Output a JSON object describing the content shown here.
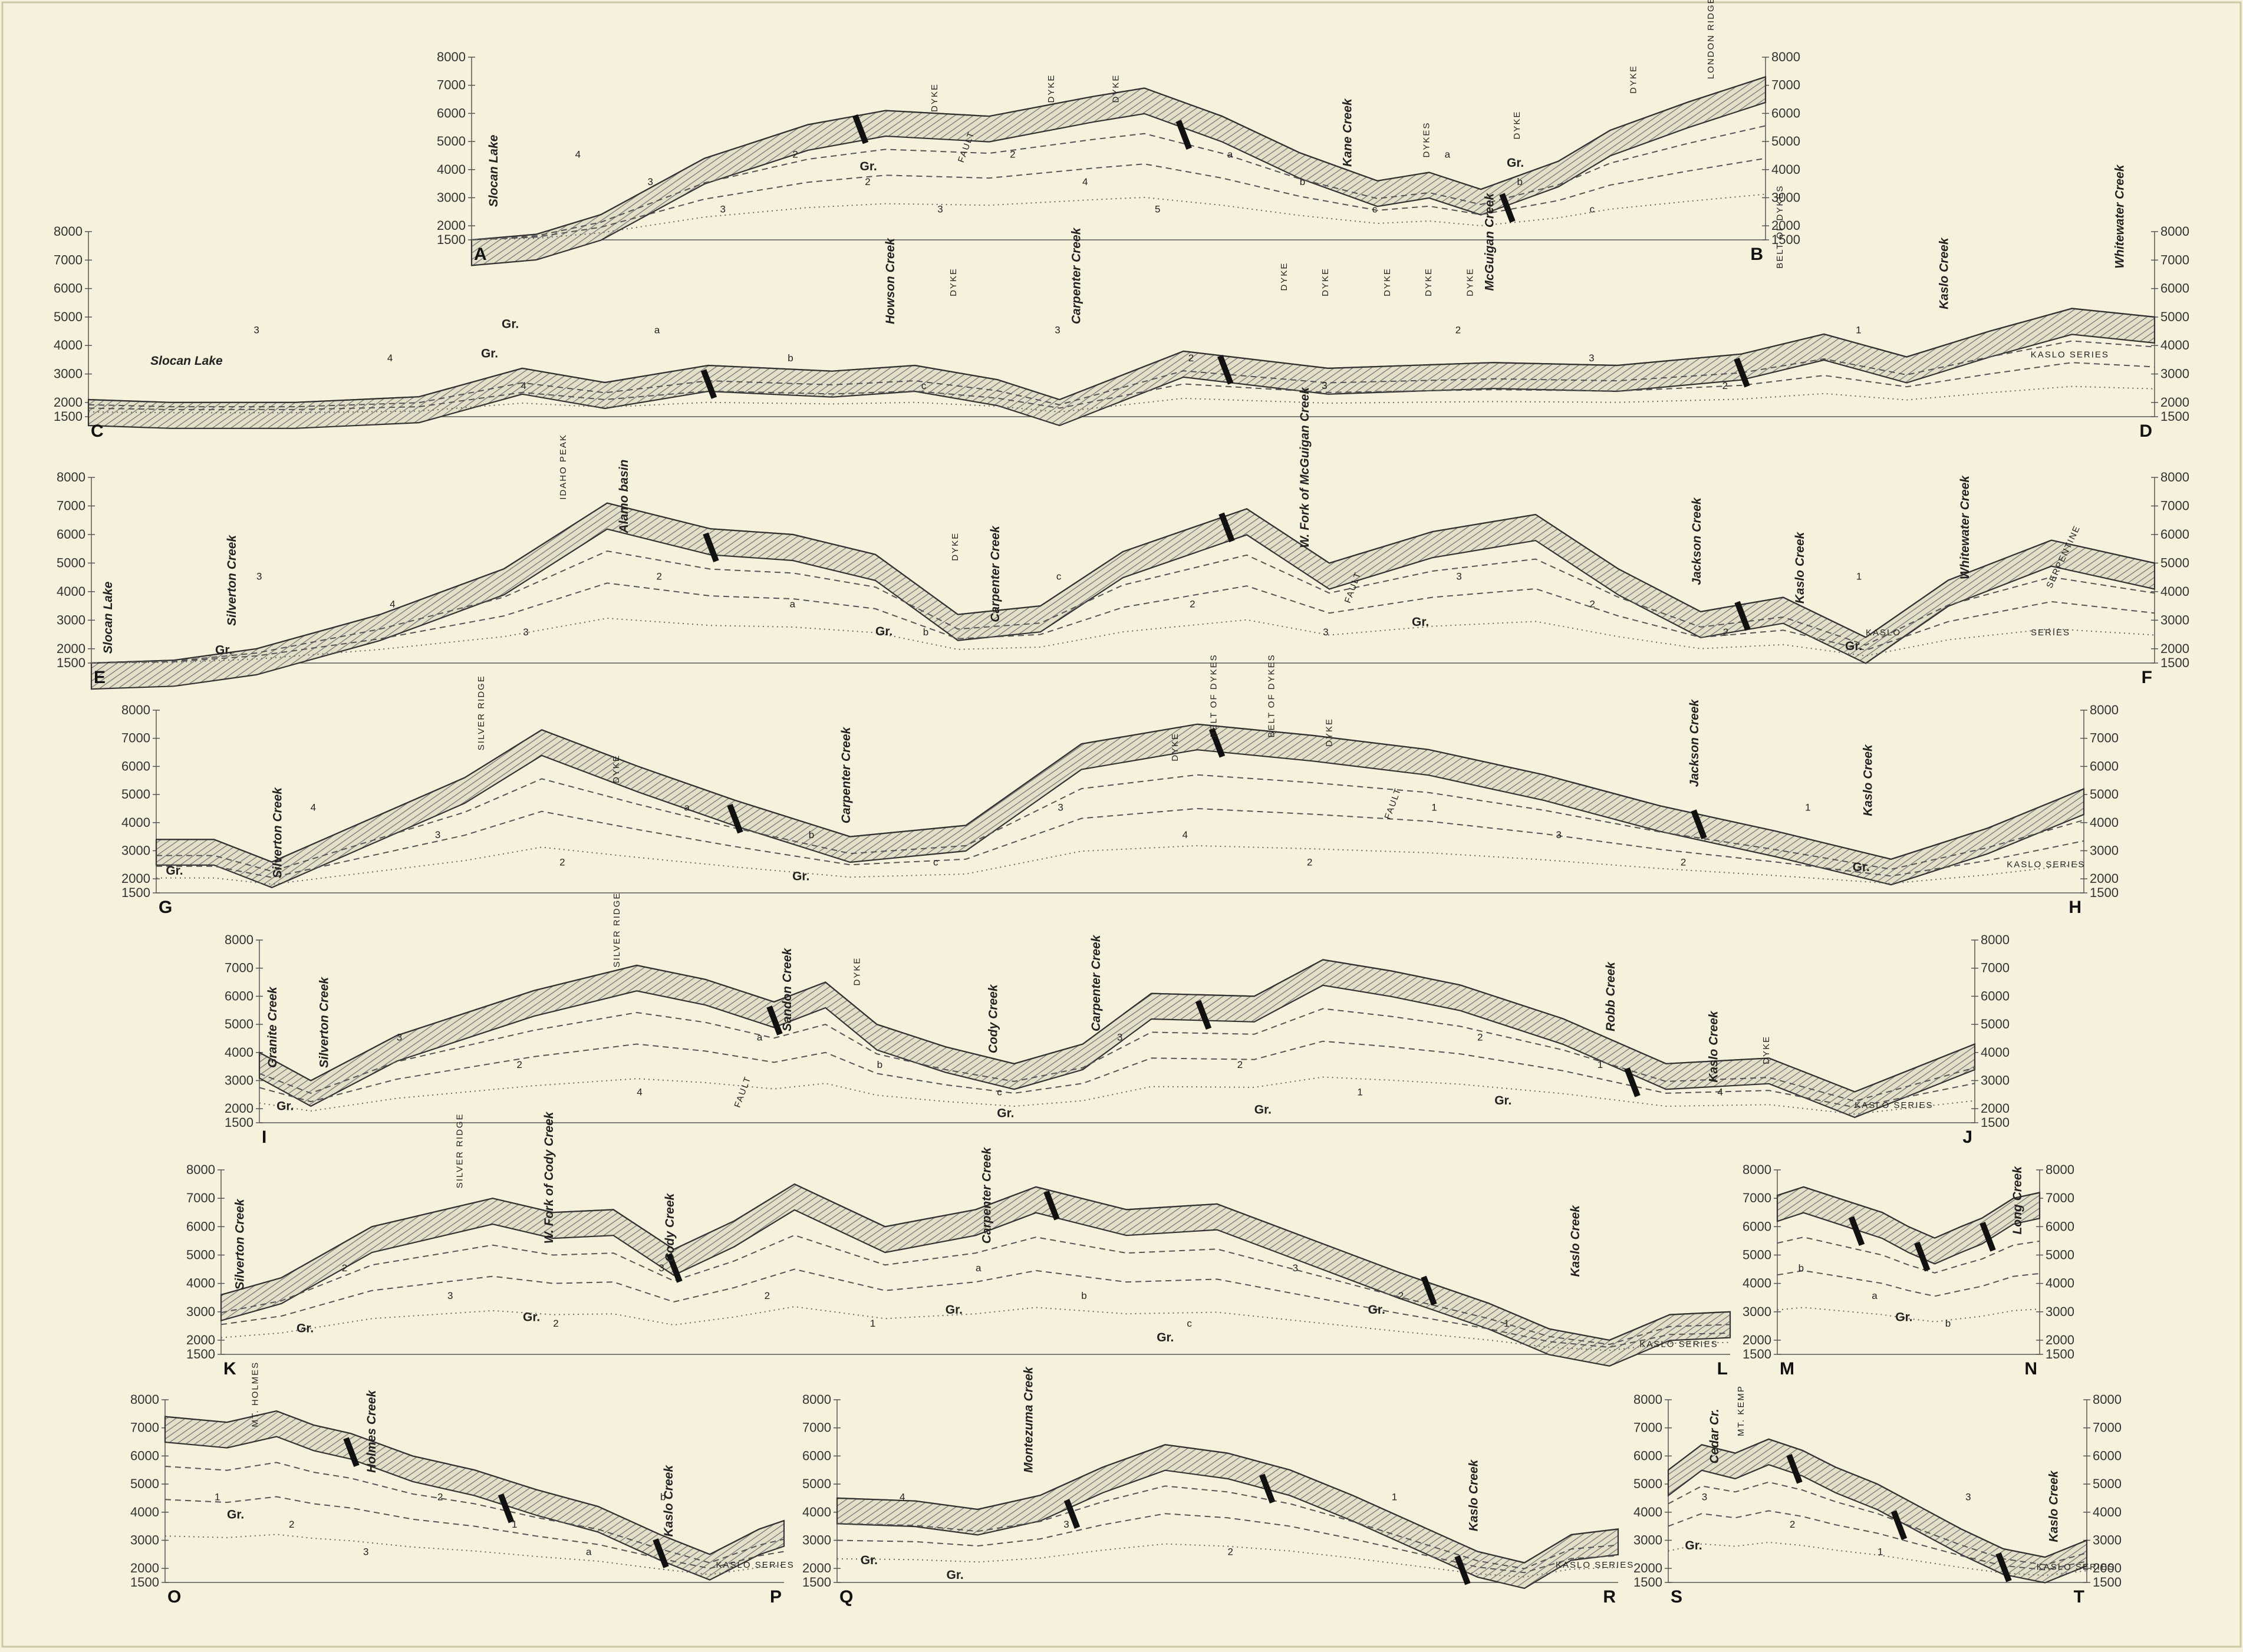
{
  "sections": [
    {
      "id": "AB",
      "start": "A",
      "end": "B",
      "ticks": [
        "8000",
        "7000",
        "6000",
        "5000",
        "4000",
        "3000",
        "2000",
        "1500"
      ],
      "right_axis": true,
      "labels": [
        "Slocan Lake",
        "Gr.",
        "DYKE",
        "DYKE",
        "DYKE",
        "FAULT",
        "Kane Creek",
        "DYKES",
        "DYKE",
        "DYKE",
        "LONDON RIDGE",
        "Gr."
      ],
      "numbers": [
        "4",
        "3",
        "3",
        "2",
        "2",
        "3",
        "2",
        "4",
        "5",
        "a",
        "b",
        "c",
        "a",
        "b",
        "c"
      ]
    },
    {
      "id": "CD",
      "start": "C",
      "end": "D",
      "ticks": [
        "8000",
        "7000",
        "6000",
        "5000",
        "4000",
        "3000",
        "2000",
        "1500"
      ],
      "right_axis": true,
      "labels": [
        "Slocan Lake",
        "Gr.",
        "Gr.",
        "Howson Creek",
        "DYKE",
        "Carpenter Creek",
        "DYKE",
        "DYKE",
        "DYKE",
        "DYKE",
        "DYKE",
        "McGuigan Creek",
        "BELT OF DYKES",
        "Kaslo Creek",
        "Whitewater Creek",
        "KASLO SERIES"
      ],
      "numbers": [
        "3",
        "4",
        "4",
        "a",
        "b",
        "c",
        "3",
        "2",
        "3",
        "2",
        "3",
        "2",
        "1"
      ]
    },
    {
      "id": "EF",
      "start": "E",
      "end": "F",
      "ticks": [
        "8000",
        "7000",
        "6000",
        "5000",
        "4000",
        "3000",
        "2000",
        "1500"
      ],
      "right_axis": true,
      "labels": [
        "Slocan Lake",
        "Silverton Creek",
        "Gr.",
        "IDAHO PEAK",
        "Alamo basin",
        "DYKE",
        "Carpenter Creek",
        "Gr.",
        "W. Fork of McGuigan Creek",
        "FAULT",
        "Gr.",
        "Jackson Creek",
        "Kaslo Creek",
        "Whitewater Creek",
        "KASLO",
        "SERPENTINE",
        "SERIES",
        "Gr."
      ],
      "numbers": [
        "3",
        "4",
        "3",
        "2",
        "a",
        "b",
        "c",
        "2",
        "3",
        "3",
        "2",
        "2",
        "1"
      ]
    },
    {
      "id": "GH",
      "start": "G",
      "end": "H",
      "ticks": [
        "8000",
        "7000",
        "6000",
        "5000",
        "4000",
        "3000",
        "2000",
        "1500"
      ],
      "right_axis": true,
      "labels": [
        "Gr.",
        "Silverton Creek",
        "SILVER RIDGE",
        "DYKE",
        "Carpenter Creek",
        "Gr.",
        "DYKE",
        "BELT OF DYKES",
        "BELT OF DYKES",
        "DYKE",
        "FAULT",
        "Jackson Creek",
        "Kaslo Creek",
        "Gr.",
        "KASLO SERIES"
      ],
      "numbers": [
        "4",
        "3",
        "2",
        "a",
        "b",
        "c",
        "3",
        "4",
        "2",
        "1",
        "3",
        "2",
        "1"
      ]
    },
    {
      "id": "IJ",
      "start": "I",
      "end": "J",
      "ticks": [
        "8000",
        "7000",
        "6000",
        "5000",
        "4000",
        "3000",
        "2000",
        "1500"
      ],
      "right_axis": true,
      "labels": [
        "Granite Creek",
        "Silverton Creek",
        "Gr.",
        "SILVER RIDGE",
        "Sandon Creek",
        "DYKE",
        "FAULT",
        "Cody Creek",
        "Carpenter Creek",
        "Gr.",
        "Gr.",
        "Gr.",
        "Robb Creek",
        "Kaslo Creek",
        "DYKE",
        "KASLO SERIES"
      ],
      "numbers": [
        "3",
        "2",
        "4",
        "a",
        "b",
        "c",
        "3",
        "2",
        "1",
        "2",
        "1",
        "4"
      ]
    },
    {
      "id": "KL",
      "start": "K",
      "end": "L",
      "ticks": [
        "8000",
        "7000",
        "6000",
        "5000",
        "4000",
        "3000",
        "2000",
        "1500"
      ],
      "right_axis": false,
      "labels": [
        "Silverton Creek",
        "SILVER RIDGE",
        "W. Fork of Cody Creek",
        "Cody Creek",
        "Carpenter Creek",
        "Gr.",
        "Gr.",
        "Gr.",
        "Gr.",
        "Gr.",
        "Kaslo Creek",
        "KASLO SERIES"
      ],
      "numbers": [
        "2",
        "3",
        "2",
        "3",
        "2",
        "1",
        "a",
        "b",
        "c",
        "3",
        "2",
        "1"
      ]
    },
    {
      "id": "MN",
      "start": "M",
      "end": "N",
      "ticks": [
        "8000",
        "7000",
        "6000",
        "5000",
        "4000",
        "3000",
        "2000",
        "1500"
      ],
      "right_axis": true,
      "labels": [
        "Long Creek",
        "Gr."
      ],
      "numbers": [
        "b",
        "a",
        "b"
      ]
    },
    {
      "id": "OP",
      "start": "O",
      "end": "P",
      "ticks": [
        "8000",
        "7000",
        "6000",
        "5000",
        "4000",
        "3000",
        "2000",
        "1500"
      ],
      "right_axis": false,
      "labels": [
        "MT. HOLMES",
        "Holmes Creek",
        "Gr.",
        "Kaslo Creek",
        "KASLO SERIES"
      ],
      "numbers": [
        "1",
        "2",
        "3",
        "2",
        "1",
        "a",
        "b"
      ]
    },
    {
      "id": "QR",
      "start": "Q",
      "end": "R",
      "ticks": [
        "8000",
        "7000",
        "6000",
        "5000",
        "4000",
        "3000",
        "2000",
        "1500"
      ],
      "right_axis": false,
      "labels": [
        "Montezuma Creek",
        "Gr.",
        "Gr.",
        "Kaslo Creek",
        "KASLO SERIES"
      ],
      "numbers": [
        "4",
        "3",
        "2",
        "1"
      ]
    },
    {
      "id": "ST",
      "start": "S",
      "end": "T",
      "ticks": [
        "8000",
        "7000",
        "6000",
        "5000",
        "4000",
        "3000",
        "2000",
        "1500"
      ],
      "right_axis": true,
      "labels": [
        "Cedar Cr.",
        "MT. KEMP",
        "Gr.",
        "Kaslo Creek",
        "KASLO SERIES"
      ],
      "numbers": [
        "3",
        "2",
        "1",
        "3"
      ]
    }
  ]
}
